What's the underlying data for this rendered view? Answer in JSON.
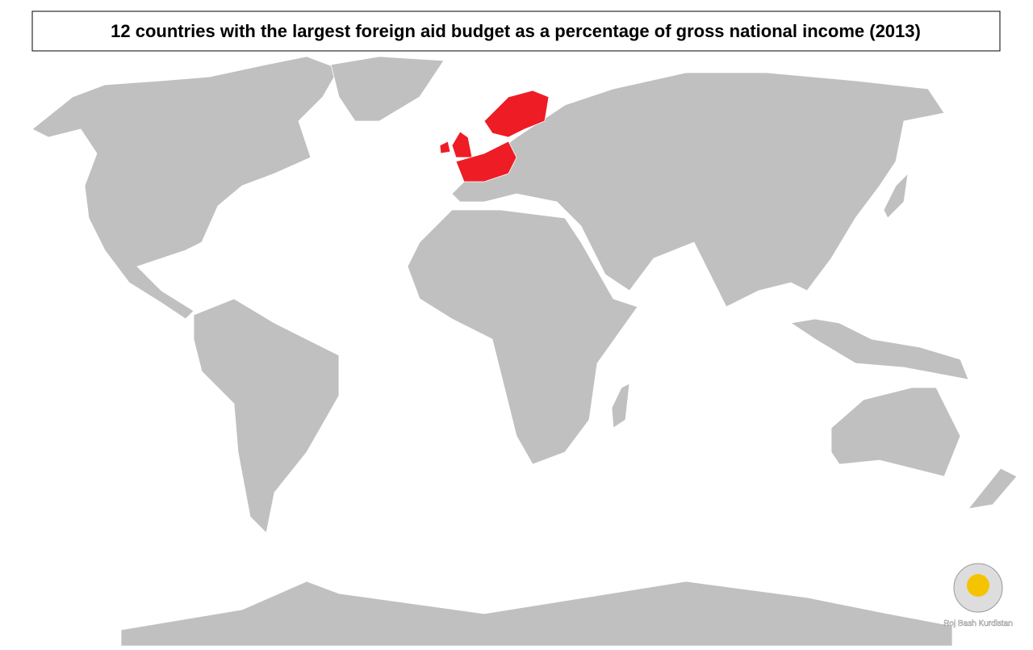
{
  "header": {
    "title": "12 countries with the largest foreign aid budget as a percentage of gross national income (2013)"
  },
  "logo": {
    "text": "Roj Bash Kurdistan"
  }
}
